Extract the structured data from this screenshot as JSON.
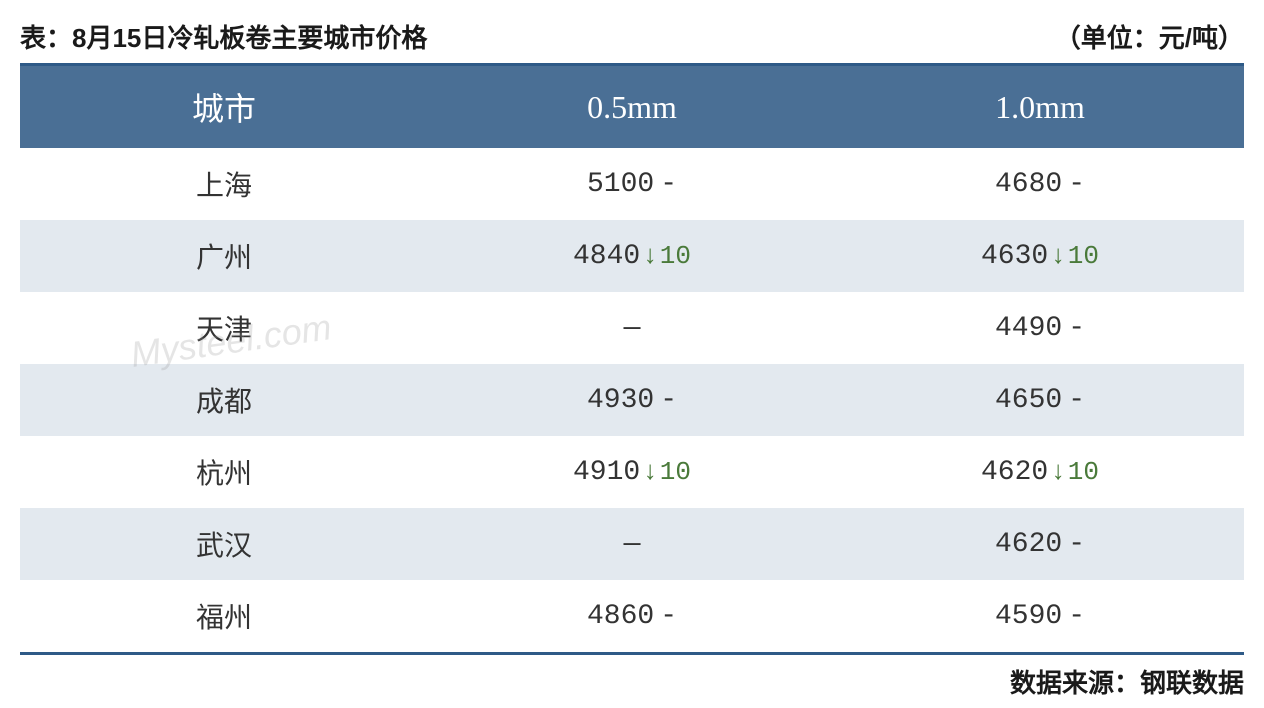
{
  "header": {
    "title": "表：8月15日冷轧板卷主要城市价格",
    "unit": "（单位：元/吨）"
  },
  "table": {
    "type": "table",
    "columns": [
      "城市",
      "0.5mm",
      "1.0mm"
    ],
    "header_bg": "#4a6f95",
    "header_text_color": "#ffffff",
    "border_color": "#2e5a87",
    "alt_row_bg": "#e3e9ef",
    "arrow_color": "#4a7a3a",
    "rows": [
      {
        "city": "上海",
        "col05": {
          "value": "5100",
          "change": null,
          "dash": true
        },
        "col10": {
          "value": "4680",
          "change": null,
          "dash": true
        },
        "alt": false
      },
      {
        "city": "广州",
        "col05": {
          "value": "4840",
          "change": "10",
          "dash": false
        },
        "col10": {
          "value": "4630",
          "change": "10",
          "dash": false
        },
        "alt": true
      },
      {
        "city": "天津",
        "col05": {
          "value": "—",
          "change": null,
          "dash": false,
          "empty": true
        },
        "col10": {
          "value": "4490",
          "change": null,
          "dash": true
        },
        "alt": false
      },
      {
        "city": "成都",
        "col05": {
          "value": "4930",
          "change": null,
          "dash": true
        },
        "col10": {
          "value": "4650",
          "change": null,
          "dash": true
        },
        "alt": true
      },
      {
        "city": "杭州",
        "col05": {
          "value": "4910",
          "change": "10",
          "dash": false
        },
        "col10": {
          "value": "4620",
          "change": "10",
          "dash": false
        },
        "alt": false
      },
      {
        "city": "武汉",
        "col05": {
          "value": "—",
          "change": null,
          "dash": false,
          "empty": true
        },
        "col10": {
          "value": "4620",
          "change": null,
          "dash": true
        },
        "alt": true
      },
      {
        "city": "福州",
        "col05": {
          "value": "4860",
          "change": null,
          "dash": true
        },
        "col10": {
          "value": "4590",
          "change": null,
          "dash": true
        },
        "alt": false
      }
    ]
  },
  "footer": {
    "source": "数据来源：钢联数据"
  },
  "watermark": "Mysteel.com"
}
